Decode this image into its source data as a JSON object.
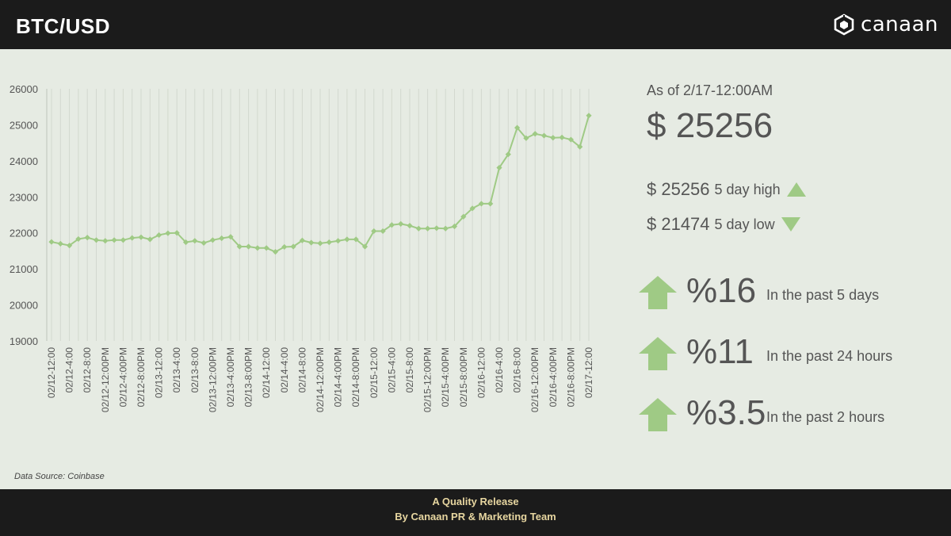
{
  "header": {
    "title": "BTC/USD",
    "logo_text": "canaan",
    "logo_icon": "canaan-hexagon-logo"
  },
  "stats": {
    "as_of": "As of 2/17-12:00AM",
    "current_price": "$ 25256",
    "high": {
      "value": "$ 25256",
      "label": "5 day high",
      "icon": "triangle-up-icon"
    },
    "low": {
      "value": "$ 21474",
      "label": "5 day low",
      "icon": "triangle-down-icon"
    },
    "changes": [
      {
        "pct": "%16",
        "desc": "In the past 5 days",
        "icon": "arrow-up-icon"
      },
      {
        "pct": "%11",
        "desc": "In the past 24 hours",
        "icon": "arrow-up-icon"
      },
      {
        "pct": "%3.5",
        "desc": "In the past 2 hours",
        "icon": "arrow-up-icon"
      }
    ]
  },
  "source": "Data Source: Coinbase",
  "footer": {
    "line1": "A Quality Release",
    "line2": "By Canaan PR & Marketing Team"
  },
  "colors": {
    "series": "#9fca85",
    "panel": "#e6ebe3",
    "header": "#1b1b1b",
    "footer_text": "#e7d6a0"
  },
  "chart_data": {
    "type": "line",
    "title": "",
    "xlabel": "",
    "ylabel": "",
    "ylim": [
      19000,
      26000
    ],
    "yticks": [
      19000,
      20000,
      21000,
      22000,
      23000,
      24000,
      25000,
      26000
    ],
    "grid": "vertical",
    "tick_labels": [
      "02/12-12:00",
      "02/12-4:00",
      "02/12-8:00",
      "02/12-12:00PM",
      "02/12-4:00PM",
      "02/12-8:00PM",
      "02/13-12:00",
      "02/13-4:00",
      "02/13-8:00",
      "02/13-12:00PM",
      "02/13-4:00PM",
      "02/13-8:00PM",
      "02/14-12:00",
      "02/14-4:00",
      "02/14-8:00",
      "02/14-12:00PM",
      "02/14-4:00PM",
      "02/14-8:00PM",
      "02/15-12:00",
      "02/15-4:00",
      "02/15-8:00",
      "02/15-12:00PM",
      "02/15-4:00PM",
      "02/15-8:00PM",
      "02/16-12:00",
      "02/16-4:00",
      "02/16-8:00",
      "02/16-12:00PM",
      "02/16-4:00PM",
      "02/16-8:00PM",
      "02/17-12:00"
    ],
    "values": [
      21750,
      21700,
      21650,
      21830,
      21870,
      21800,
      21780,
      21800,
      21800,
      21860,
      21880,
      21820,
      21940,
      21990,
      22000,
      21740,
      21780,
      21720,
      21800,
      21850,
      21890,
      21620,
      21620,
      21580,
      21580,
      21474,
      21610,
      21620,
      21790,
      21730,
      21710,
      21740,
      21780,
      21820,
      21820,
      21620,
      22050,
      22050,
      22220,
      22250,
      22200,
      22120,
      22120,
      22130,
      22120,
      22180,
      22450,
      22680,
      22810,
      22810,
      23810,
      24180,
      24920,
      24630,
      24750,
      24700,
      24640,
      24650,
      24590,
      24390,
      25256
    ]
  }
}
